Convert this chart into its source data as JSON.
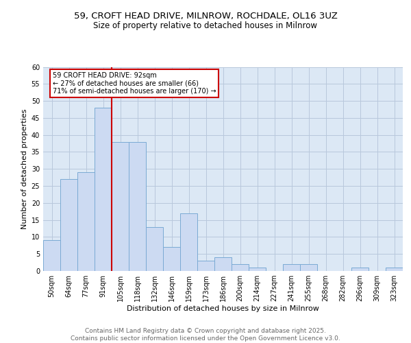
{
  "title_line1": "59, CROFT HEAD DRIVE, MILNROW, ROCHDALE, OL16 3UZ",
  "title_line2": "Size of property relative to detached houses in Milnrow",
  "xlabel": "Distribution of detached houses by size in Milnrow",
  "ylabel": "Number of detached properties",
  "categories": [
    "50sqm",
    "64sqm",
    "77sqm",
    "91sqm",
    "105sqm",
    "118sqm",
    "132sqm",
    "146sqm",
    "159sqm",
    "173sqm",
    "186sqm",
    "200sqm",
    "214sqm",
    "227sqm",
    "241sqm",
    "255sqm",
    "268sqm",
    "282sqm",
    "296sqm",
    "309sqm",
    "323sqm"
  ],
  "values": [
    9,
    27,
    29,
    48,
    38,
    38,
    13,
    7,
    17,
    3,
    4,
    2,
    1,
    0,
    2,
    2,
    0,
    0,
    1,
    0,
    1
  ],
  "bar_color": "#ccdaf2",
  "bar_edge_color": "#7aaad4",
  "vline_color": "#cc0000",
  "annotation_text": "59 CROFT HEAD DRIVE: 92sqm\n← 27% of detached houses are smaller (66)\n71% of semi-detached houses are larger (170) →",
  "annotation_box_color": "#ffffff",
  "annotation_box_edge": "#cc0000",
  "ylim": [
    0,
    60
  ],
  "yticks": [
    0,
    5,
    10,
    15,
    20,
    25,
    30,
    35,
    40,
    45,
    50,
    55,
    60
  ],
  "grid_color": "#b8c8dc",
  "background_color": "#dce8f5",
  "footer_text": "Contains HM Land Registry data © Crown copyright and database right 2025.\nContains public sector information licensed under the Open Government Licence v3.0.",
  "title_fontsize": 9.5,
  "subtitle_fontsize": 8.5,
  "axis_label_fontsize": 8,
  "tick_fontsize": 7,
  "annotation_fontsize": 7,
  "footer_fontsize": 6.5
}
